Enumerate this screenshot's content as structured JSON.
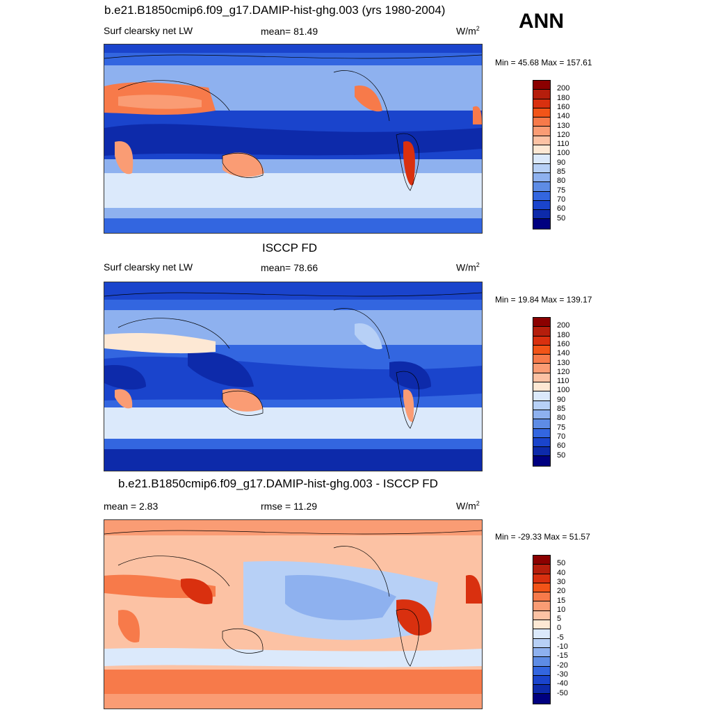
{
  "season": "ANN",
  "panels": [
    {
      "title": "b.e21.B1850cmip6.f09_g17.DAMIP-hist-ghg.003 (yrs 1980-2004)",
      "left_label": "Surf clearsky net LW",
      "center_label": "mean=  81.49",
      "units": "W/m",
      "units_sup": "2",
      "minmax": "Min =  45.68 Max = 157.61",
      "colorbar_labels": [
        "200",
        "180",
        "160",
        "140",
        "130",
        "120",
        "110",
        "100",
        "90",
        "85",
        "80",
        "75",
        "70",
        "60",
        "50"
      ],
      "colorbar_colors": [
        "#8b0000",
        "#b51e0c",
        "#d9300f",
        "#f25418",
        "#f77a4a",
        "#fa9c74",
        "#fcc2a4",
        "#fde8d4",
        "#dbe9fb",
        "#b7d0f6",
        "#8eb1ef",
        "#5e8ce5",
        "#3366e0",
        "#1a44cc",
        "#0d2aaa",
        "#000080"
      ]
    },
    {
      "title": "ISCCP FD",
      "left_label": "Surf clearsky net LW",
      "center_label": "mean=  78.66",
      "units": "W/m",
      "units_sup": "2",
      "minmax": "Min =  19.84 Max = 139.17",
      "colorbar_labels": [
        "200",
        "180",
        "160",
        "140",
        "130",
        "120",
        "110",
        "100",
        "90",
        "85",
        "80",
        "75",
        "70",
        "60",
        "50"
      ],
      "colorbar_colors": [
        "#8b0000",
        "#b51e0c",
        "#d9300f",
        "#f25418",
        "#f77a4a",
        "#fa9c74",
        "#fcc2a4",
        "#fde8d4",
        "#dbe9fb",
        "#b7d0f6",
        "#8eb1ef",
        "#5e8ce5",
        "#3366e0",
        "#1a44cc",
        "#0d2aaa",
        "#000080"
      ]
    },
    {
      "title": "b.e21.B1850cmip6.f09_g17.DAMIP-hist-ghg.003 - ISCCP FD",
      "left_label": "mean =   2.83",
      "center_label": "rmse =  11.29",
      "units": "W/m",
      "units_sup": "2",
      "minmax": "Min = -29.33 Max =  51.57",
      "colorbar_labels": [
        "50",
        "40",
        "30",
        "20",
        "15",
        "10",
        "5",
        "0",
        "-5",
        "-10",
        "-15",
        "-20",
        "-30",
        "-40",
        "-50"
      ],
      "colorbar_colors": [
        "#8b0000",
        "#b51e0c",
        "#d9300f",
        "#f25418",
        "#f77a4a",
        "#fa9c74",
        "#fcc2a4",
        "#fde8d4",
        "#dbe9fb",
        "#b7d0f6",
        "#8eb1ef",
        "#5e8ce5",
        "#3366e0",
        "#1a44cc",
        "#0d2aaa",
        "#000080"
      ]
    }
  ]
}
